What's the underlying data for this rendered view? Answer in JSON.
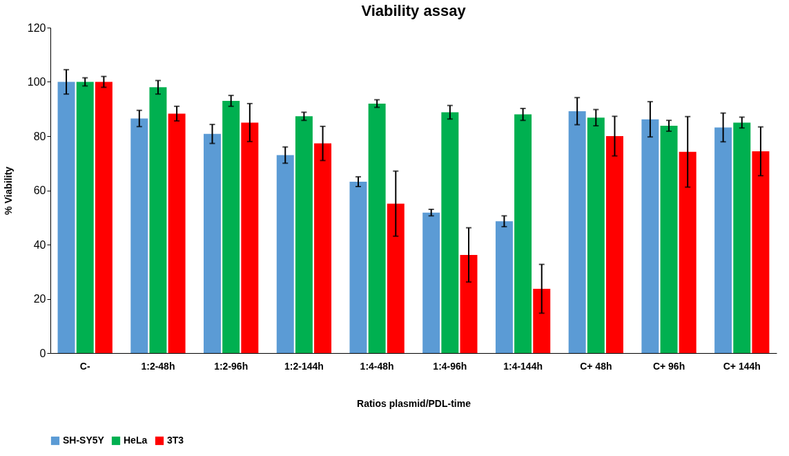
{
  "chart_data": {
    "type": "bar",
    "title": "Viability assay",
    "xlabel": "Ratios plasmid/PDL-time",
    "ylabel": "% Viability",
    "categories": [
      "C-",
      "1:2-48h",
      "1:2-96h",
      "1:2-144h",
      "1:4-48h",
      "1:4-96h",
      "1:4-144h",
      "C+ 48h",
      "C+ 96h",
      "C+ 144h"
    ],
    "series": [
      {
        "name": "SH-SY5Y",
        "color": "#5b9bd5",
        "values": [
          100,
          86.5,
          80.8,
          73,
          63.2,
          51.8,
          48.6,
          89.2,
          86.2,
          83.2
        ],
        "errors": [
          4.5,
          3,
          3.5,
          3,
          1.8,
          1.2,
          2,
          5,
          6.5,
          5.3
        ]
      },
      {
        "name": "HeLa",
        "color": "#00b050",
        "values": [
          100,
          98,
          93,
          87.3,
          92,
          88.8,
          88,
          86.8,
          83.8,
          85
        ],
        "errors": [
          1.5,
          2.5,
          2,
          1.5,
          1.4,
          2.5,
          2.2,
          3,
          2,
          2
        ]
      },
      {
        "name": "3T3",
        "color": "#ff0000",
        "values": [
          100,
          88.3,
          85,
          77.3,
          55.1,
          36.2,
          23.7,
          80,
          74.2,
          74.4
        ],
        "errors": [
          2,
          2.7,
          7,
          6.3,
          12,
          10,
          9,
          7.3,
          13,
          9
        ]
      }
    ],
    "ylim": [
      0,
      120
    ],
    "yticks": [
      0,
      20,
      40,
      60,
      80,
      100,
      120
    ],
    "grid": false,
    "legend": "bottom"
  }
}
